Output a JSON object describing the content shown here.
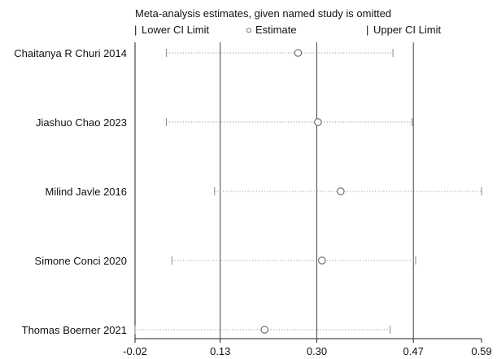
{
  "chart_data": {
    "type": "scatter",
    "title": "Meta-analysis estimates, given named study is omitted",
    "legend": {
      "placement": "top",
      "entries": [
        {
          "marker": "|",
          "label": "Lower CI Limit"
        },
        {
          "marker": "○",
          "label": "Estimate"
        },
        {
          "marker": "|",
          "label": "Upper CI Limit"
        }
      ]
    },
    "x_ticks": [
      -0.02,
      0.13,
      0.3,
      0.47,
      0.59
    ],
    "x_tick_labels": [
      "-0.02",
      "0.13",
      "0.30",
      "0.47",
      "0.59"
    ],
    "xlim": [
      -0.02,
      0.59
    ],
    "reference_lines": [
      0.13,
      0.3,
      0.47
    ],
    "studies": [
      {
        "name": "Chaitanya R Churi 2014",
        "lower": 0.035,
        "estimate": 0.267,
        "upper": 0.434
      },
      {
        "name": "Jiashuo Chao 2023",
        "lower": 0.035,
        "estimate": 0.302,
        "upper": 0.468
      },
      {
        "name": "Milind Javle 2016",
        "lower": 0.12,
        "estimate": 0.342,
        "upper": 0.59
      },
      {
        "name": "Simone Conci 2020",
        "lower": 0.045,
        "estimate": 0.309,
        "upper": 0.474
      },
      {
        "name": "Thomas Boerner 2021",
        "lower": -0.02,
        "estimate": 0.208,
        "upper": 0.429
      }
    ]
  }
}
